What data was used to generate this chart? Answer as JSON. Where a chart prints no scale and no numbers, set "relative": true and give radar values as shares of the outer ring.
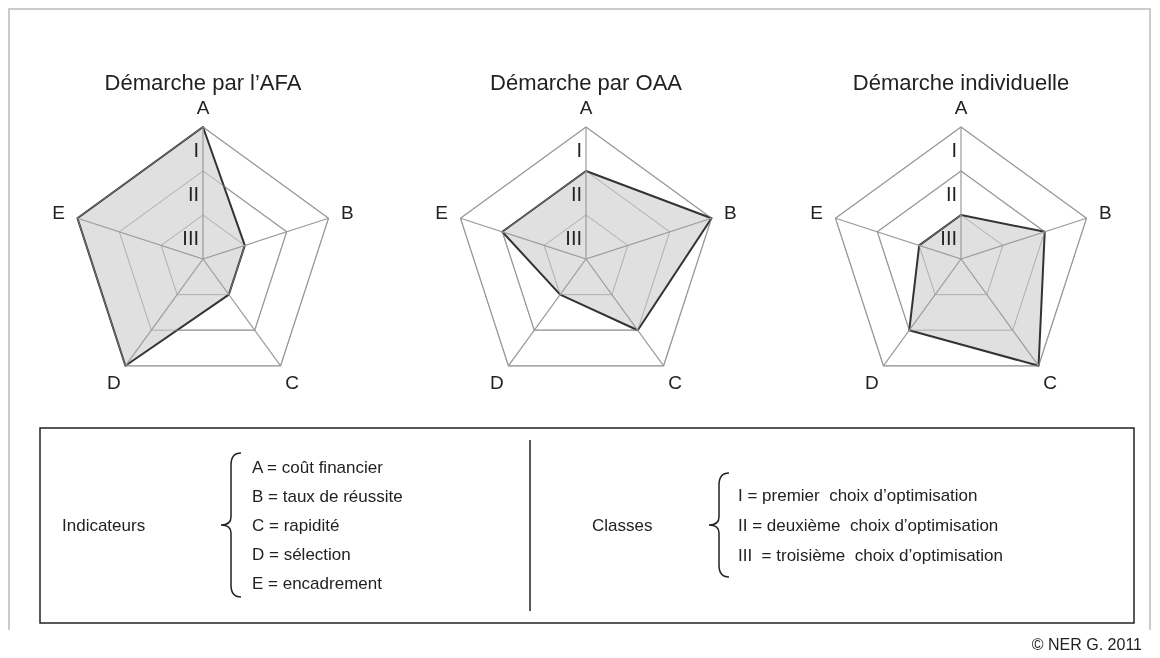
{
  "chart_data": [
    {
      "type": "radar",
      "title": "Démarche par l’AFA",
      "categories": [
        "A",
        "B",
        "C",
        "D",
        "E"
      ],
      "relative": true,
      "grid": true,
      "annotations": [
        "I",
        "II",
        "III"
      ],
      "series": [
        {
          "color": "#dddddd",
          "values": [
            1,
            0.333,
            0.333,
            1,
            1
          ]
        }
      ]
    },
    {
      "type": "radar",
      "title": "Démarche par OAA",
      "categories": [
        "A",
        "B",
        "C",
        "D",
        "E"
      ],
      "relative": true,
      "grid": true,
      "annotations": [
        "I",
        "II",
        "III"
      ],
      "series": [
        {
          "color": "#dddddd",
          "values": [
            0.667,
            1,
            0.667,
            0.333,
            0.667
          ]
        }
      ]
    },
    {
      "type": "radar",
      "title": "Démarche individuelle",
      "categories": [
        "A",
        "B",
        "C",
        "D",
        "E"
      ],
      "relative": true,
      "grid": true,
      "annotations": [
        "I",
        "II",
        "III"
      ],
      "series": [
        {
          "color": "#dddddd",
          "values": [
            0.333,
            0.667,
            1,
            0.667,
            0.333
          ]
        }
      ]
    },
    {
      "type": "other",
      "xlabel": "Indicateurs",
      "categories": [
        "A = coût financier",
        "B = taux de réussite",
        "C = rapidité",
        "D = sélection",
        "E = encadrement"
      ],
      "ylabel": "Classes",
      "y_categories": [
        "I = premier  choix d’optimisation",
        "II = deuxième  choix d’optimisation",
        "III  = troisième  choix d’optimisation"
      ],
      "annotations": [
        "© NER G. 2011"
      ]
    }
  ]
}
